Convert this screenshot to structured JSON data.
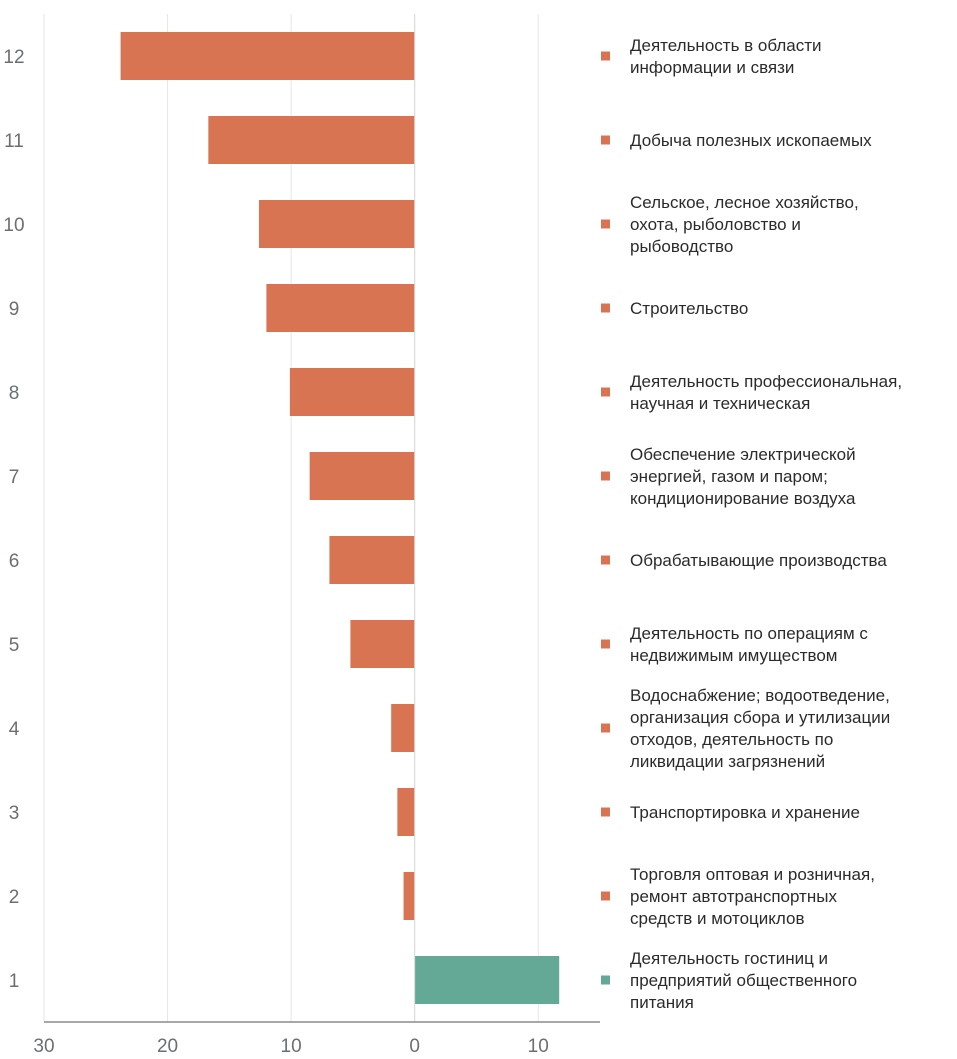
{
  "chart_data": {
    "type": "bar",
    "orientation": "horizontal",
    "categories": [
      "12",
      "11",
      "10",
      "9",
      "8",
      "7",
      "6",
      "5",
      "4",
      "3",
      "2",
      "1"
    ],
    "values": [
      -23.8,
      -16.7,
      -12.6,
      -12.0,
      -10.1,
      -8.5,
      -6.9,
      -5.2,
      -1.9,
      -1.4,
      -0.9,
      11.7
    ],
    "xlim": [
      -30,
      15
    ],
    "xticks": [
      -30,
      -20,
      -10,
      0,
      10
    ],
    "xtick_labels": [
      "30",
      "20",
      "10",
      "0",
      "10"
    ],
    "grid": "vertical",
    "colors": {
      "negative": "#D97453",
      "positive": "#63A996",
      "grid": "#e6e6e6",
      "axis": "#8c8c8c"
    },
    "legend": {
      "placement": "right",
      "entries": [
        [
          "Деятельность в области",
          "информации и связи"
        ],
        [
          "Добыча полезных ископаемых"
        ],
        [
          "Сельское, лесное хозяйство,",
          "охота, рыболовство и",
          "рыбоводство"
        ],
        [
          "Строительство"
        ],
        [
          "Деятельность профессиональная,",
          "научная и техническая"
        ],
        [
          "Обеспечение электрической",
          "энергией, газом и паром;",
          "кондиционирование воздуха"
        ],
        [
          "Обрабатывающие производства"
        ],
        [
          "Деятельность по операциям с",
          "недвижимым имуществом"
        ],
        [
          "Водоснабжение; водоотведение,",
          "организация сбора и утилизации",
          "отходов, деятельность по",
          "ликвидации загрязнений"
        ],
        [
          "Транспортировка и хранение"
        ],
        [
          "Торговля оптовая и розничная,",
          "ремонт автотранспортных",
          "средств и мотоциклов"
        ],
        [
          "Деятельность гостиниц и",
          "предприятий общественного",
          "питания"
        ]
      ]
    }
  }
}
